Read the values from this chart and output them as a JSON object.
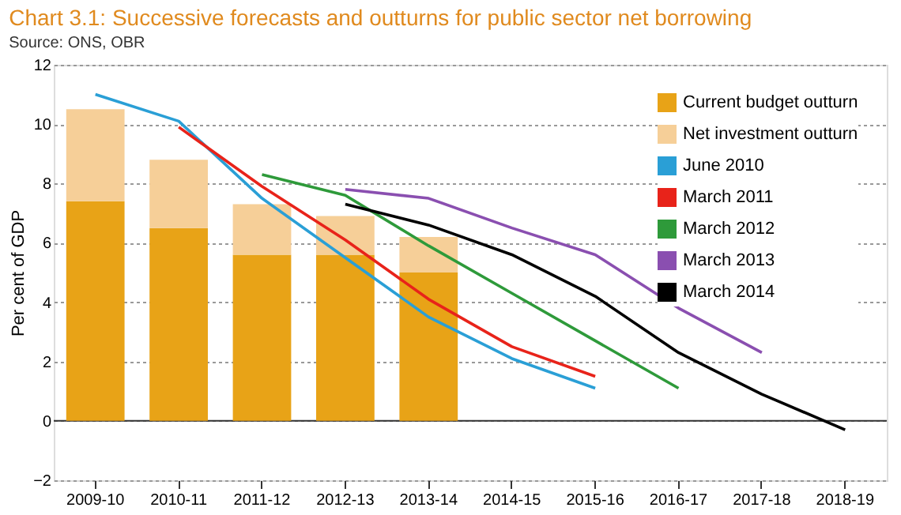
{
  "chart_data": {
    "type": "bar",
    "title": "Chart 3.1: Successive forecasts and outturns for public sector net borrowing",
    "ylabel": "Per cent of GDP",
    "categories": [
      "2009-10",
      "2010-11",
      "2011-12",
      "2012-13",
      "2013-14",
      "2014-15",
      "2015-16",
      "2016-17",
      "2017-18",
      "2018-19"
    ],
    "stacked": true,
    "series": [
      {
        "name": "Current budget outturn",
        "color": "#e8a317",
        "values": [
          7.4,
          6.5,
          5.6,
          5.6,
          5.0,
          null,
          null,
          null,
          null,
          null
        ]
      },
      {
        "name": "Net investment outturn",
        "color": "#f6cf98",
        "values": [
          3.1,
          2.3,
          1.7,
          1.3,
          1.2,
          null,
          null,
          null,
          null,
          null
        ]
      },
      {
        "name": "June 2010",
        "type": "line",
        "color": "#2a9fd6",
        "values": [
          11.0,
          10.1,
          7.5,
          5.5,
          3.5,
          2.1,
          1.1,
          null,
          null,
          null
        ]
      },
      {
        "name": "March 2011",
        "type": "line",
        "color": "#e8231a",
        "values": [
          null,
          9.9,
          7.9,
          6.1,
          4.1,
          2.5,
          1.5,
          null,
          null,
          null
        ]
      },
      {
        "name": "March 2012",
        "type": "line",
        "color": "#2e9a3a",
        "values": [
          null,
          null,
          8.3,
          7.6,
          5.9,
          4.3,
          2.7,
          1.1,
          null,
          null
        ]
      },
      {
        "name": "March 2013",
        "type": "line",
        "color": "#8a4fb0",
        "values": [
          null,
          null,
          null,
          7.8,
          7.5,
          6.5,
          5.6,
          3.8,
          2.3,
          null
        ]
      },
      {
        "name": "March 2014",
        "type": "line",
        "color": "#000000",
        "values": [
          null,
          null,
          null,
          7.3,
          6.6,
          5.6,
          4.2,
          2.3,
          0.9,
          -0.3
        ]
      }
    ],
    "ylim": [
      -2,
      12
    ],
    "yticks": [
      -2,
      0,
      2,
      4,
      6,
      8,
      10,
      12
    ],
    "grid": "y",
    "legend": "top right",
    "marker": "none",
    "line_style": "solid",
    "annotations": [
      "Source: ONS, OBR"
    ]
  }
}
